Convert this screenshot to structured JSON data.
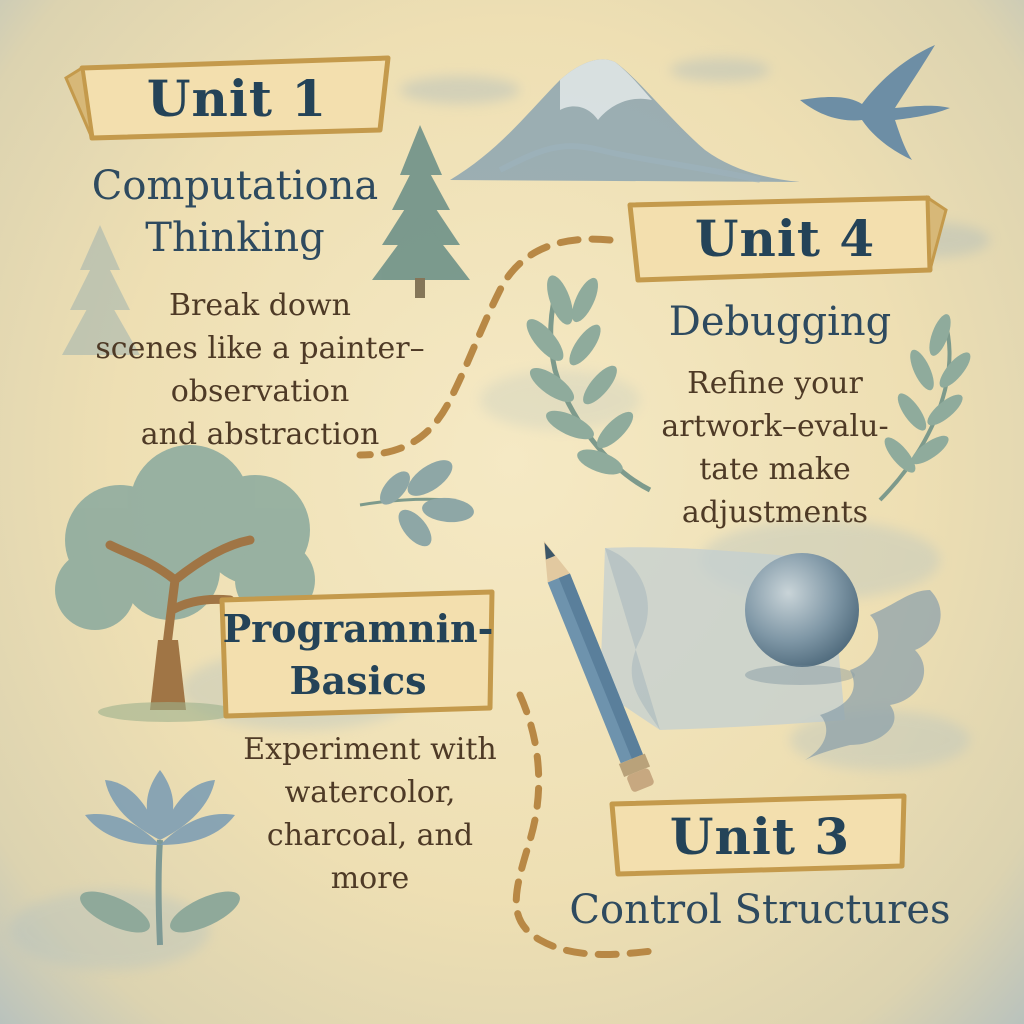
{
  "units": [
    {
      "id": "unit1",
      "label": "Unit 1",
      "title_lines": [
        "Computationa",
        "Thinking"
      ],
      "body_lines": [
        "Break down",
        "scenes like a painter–",
        "observation",
        "and abstraction"
      ]
    },
    {
      "id": "unit4",
      "label": "Unit 4",
      "title_lines": [
        "Debugging"
      ],
      "body_lines": [
        "Refine your",
        "artwork–evalu-",
        "tate make",
        "adjustments"
      ]
    },
    {
      "id": "unit2",
      "title_lines": [
        "Programnin-",
        "Basics"
      ],
      "body_lines": [
        "Experiment with",
        "watercolor,",
        "charcoal, and",
        "more"
      ]
    },
    {
      "id": "unit3",
      "label": "Unit 3",
      "title_lines": [
        "Control Structures"
      ]
    }
  ],
  "colors": {
    "parchment": "#efe2b8",
    "banner": "#f3dfae",
    "banner_edge": "#c49a4c",
    "ink_blue": "#244358",
    "ink_brown": "#4e3a26",
    "watercolor_blue": "#6f8fa5",
    "sage": "#8fa89a",
    "path_dash": "#b88845"
  },
  "icons": [
    "mountain-icon",
    "bird-icon",
    "pine-tree-icon",
    "laurel-branch-icon",
    "leaf-sprig-icon",
    "oak-tree-icon",
    "pencil-icon",
    "paper-sphere-icon",
    "smoke-icon",
    "lotus-icon"
  ]
}
